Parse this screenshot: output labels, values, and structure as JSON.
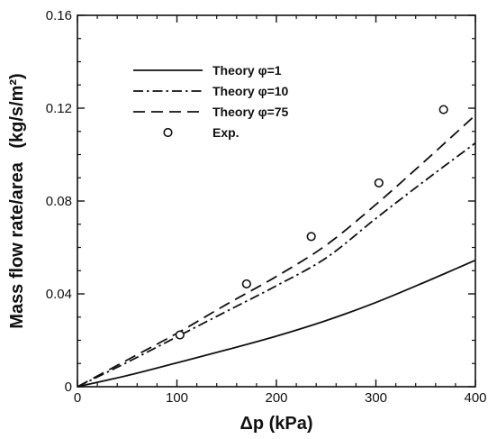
{
  "chart_data": {
    "type": "line",
    "xlabel": "Δp (kPa)",
    "ylabel": "Mass flow rate/area",
    "ylabel_unit": "(kg/s/m²)",
    "xlim": [
      0,
      400
    ],
    "ylim": [
      0,
      0.16
    ],
    "x_ticks": [
      "0",
      "100",
      "200",
      "300",
      "400"
    ],
    "y_ticks": [
      "0",
      "0.04",
      "0.08",
      "0.12",
      "0.16"
    ],
    "grid": false,
    "legend_position": "top-left",
    "series": [
      {
        "name": "Theory φ=1",
        "style": "solid",
        "x": [
          0,
          50,
          100,
          150,
          200,
          250,
          300,
          350,
          400
        ],
        "y": [
          0,
          0.0048,
          0.0103,
          0.0159,
          0.0218,
          0.0285,
          0.0363,
          0.0452,
          0.0545
        ]
      },
      {
        "name": "Theory φ=10",
        "style": "dash-dot",
        "x": [
          0,
          50,
          100,
          150,
          200,
          250,
          300,
          350,
          400
        ],
        "y": [
          0,
          0.0105,
          0.0215,
          0.0325,
          0.0435,
          0.0555,
          0.0725,
          0.089,
          0.105
        ]
      },
      {
        "name": "Theory φ=75",
        "style": "dash",
        "x": [
          0,
          50,
          100,
          150,
          200,
          250,
          300,
          350,
          400
        ],
        "y": [
          0,
          0.0115,
          0.023,
          0.0355,
          0.0475,
          0.061,
          0.0785,
          0.0975,
          0.117
        ]
      },
      {
        "name": "Exp.",
        "style": "marker",
        "x": [
          103,
          170,
          235,
          303,
          368
        ],
        "y": [
          0.0223,
          0.0443,
          0.0647,
          0.0878,
          0.1194
        ]
      }
    ]
  }
}
